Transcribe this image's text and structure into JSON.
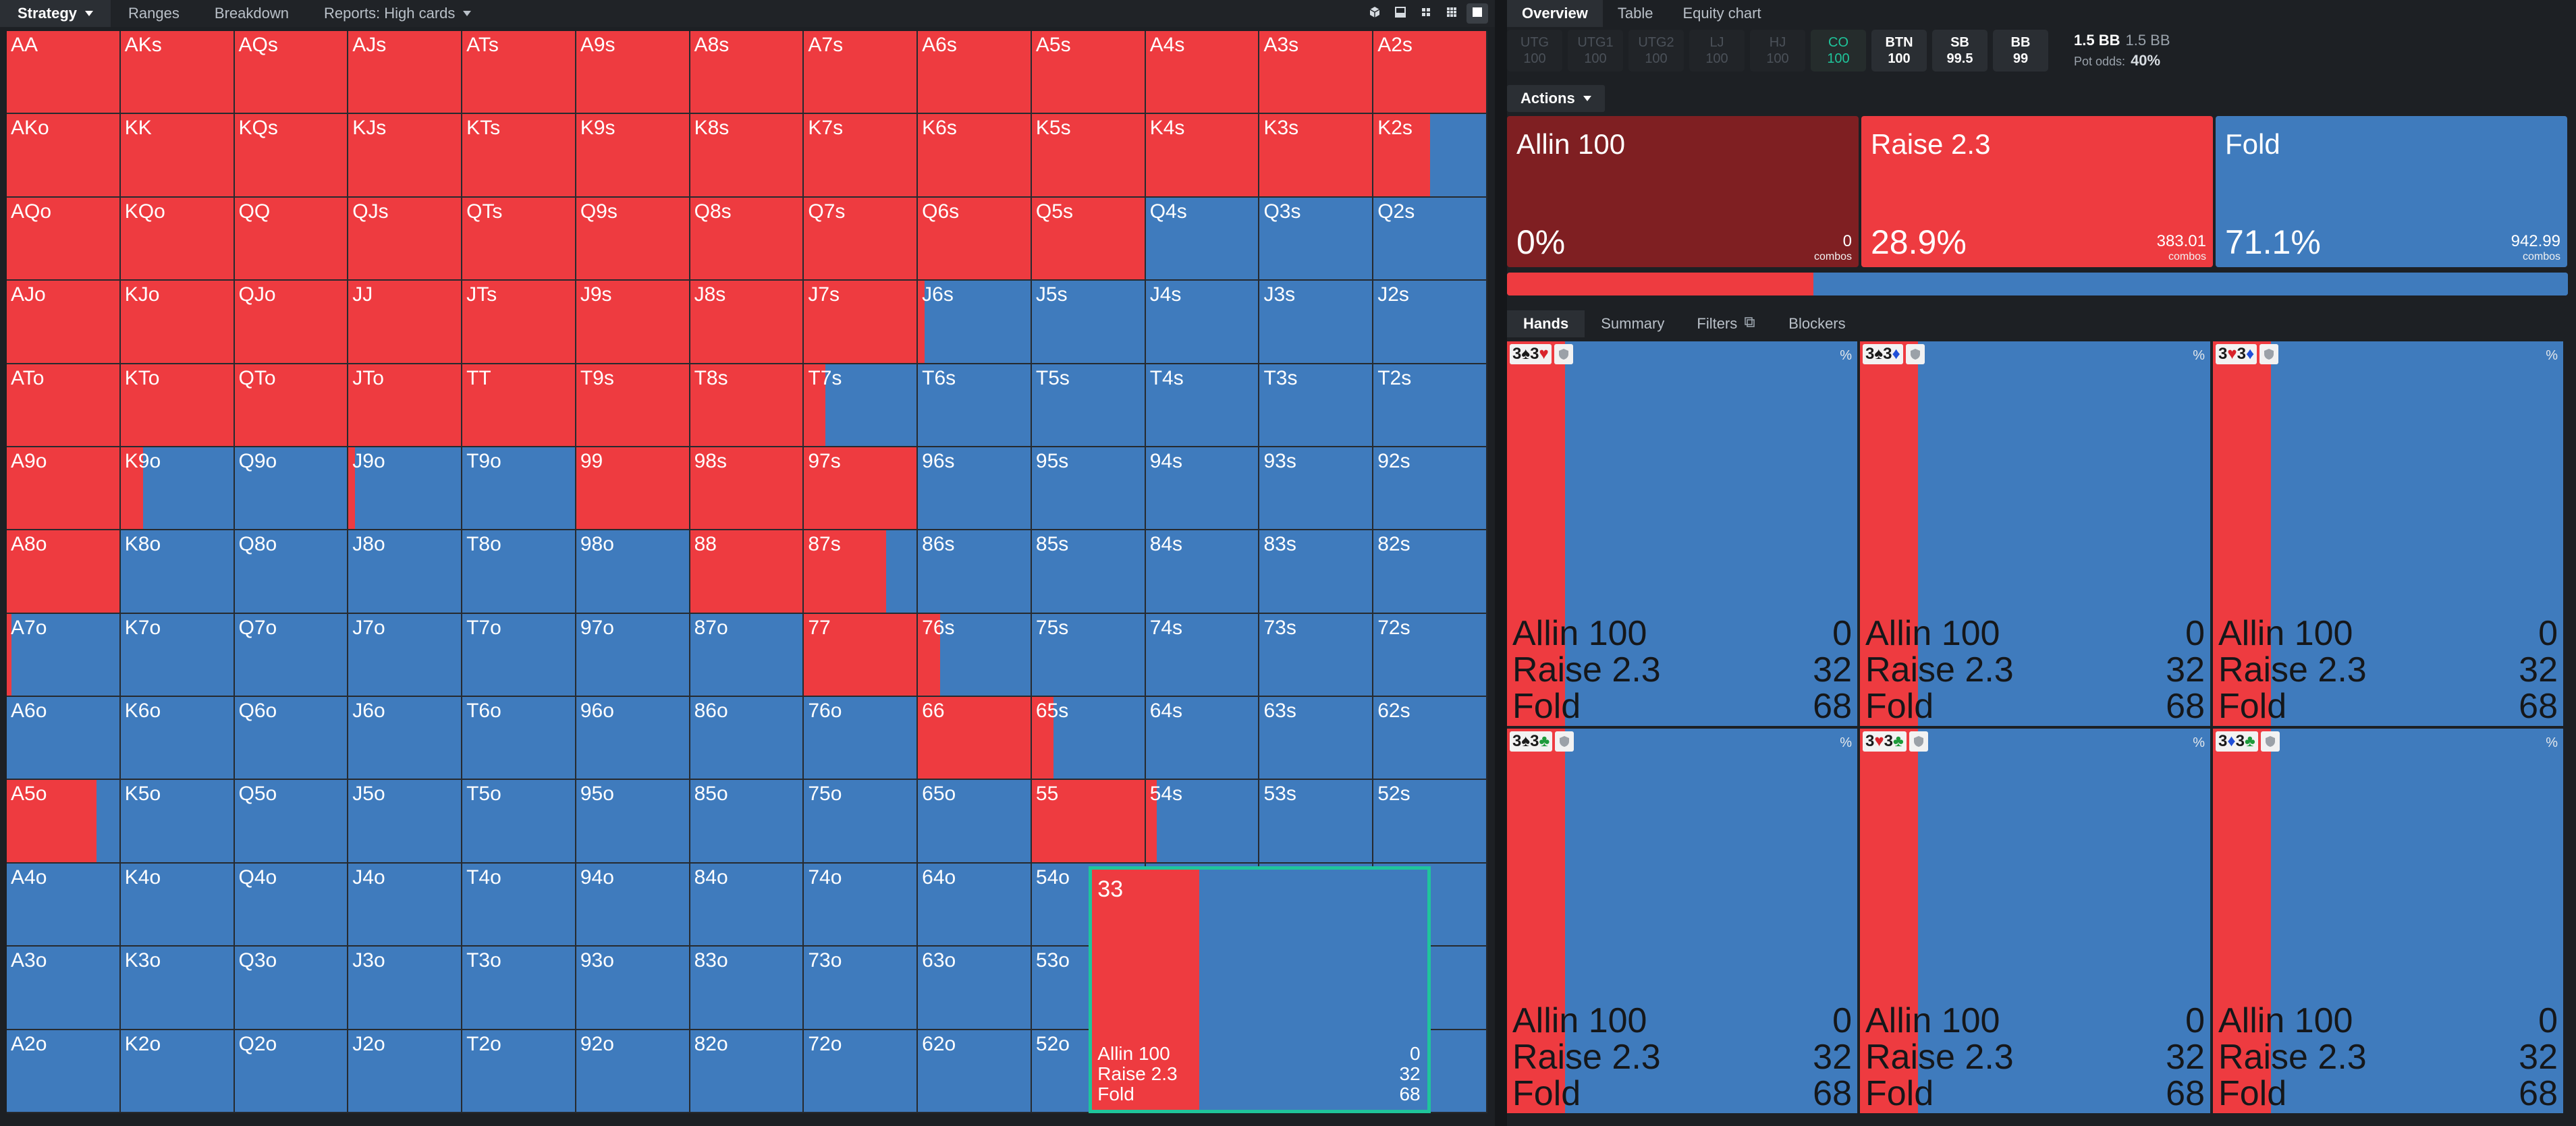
{
  "left_tabs": [
    {
      "label": "Strategy",
      "caret": true,
      "active": true
    },
    {
      "label": "Ranges",
      "caret": false,
      "active": false
    },
    {
      "label": "Breakdown",
      "caret": false,
      "active": false
    },
    {
      "label": "Reports: High cards",
      "caret": true,
      "active": false
    }
  ],
  "view_icons": [
    "cube-icon",
    "layout-split-icon",
    "grid-small-icon",
    "grid-large-icon",
    "square-icon"
  ],
  "colors": {
    "raise": "#ee3b40",
    "fold": "#3f7bbd",
    "allin": "#7f1f22",
    "selected_border": "#1fc59b"
  },
  "grid": {
    "ranks": [
      "A",
      "K",
      "Q",
      "J",
      "T",
      "9",
      "8",
      "7",
      "6",
      "5",
      "4",
      "3",
      "2"
    ],
    "raise_freq": [
      [
        1,
        1,
        1,
        1,
        1,
        1,
        1,
        1,
        1,
        1,
        1,
        1,
        1
      ],
      [
        1,
        1,
        1,
        1,
        1,
        1,
        1,
        1,
        1,
        1,
        1,
        1,
        0.5
      ],
      [
        1,
        1,
        1,
        1,
        1,
        1,
        1,
        1,
        1,
        1,
        0,
        0,
        0
      ],
      [
        1,
        1,
        1,
        1,
        1,
        1,
        1,
        1,
        0.06,
        0,
        0,
        0,
        0
      ],
      [
        1,
        1,
        1,
        1,
        1,
        1,
        1,
        0.19,
        0,
        0,
        0,
        0,
        0
      ],
      [
        1,
        0.2,
        0,
        0.06,
        0,
        1,
        1,
        1,
        0,
        0,
        0,
        0,
        0
      ],
      [
        1,
        0,
        0,
        0,
        0,
        0,
        1,
        0.73,
        0,
        0,
        0,
        0,
        0
      ],
      [
        0.04,
        0,
        0,
        0,
        0,
        0,
        0,
        1,
        0.2,
        0,
        0,
        0,
        0
      ],
      [
        0,
        0,
        0,
        0,
        0,
        0,
        0,
        0,
        1,
        0.19,
        0,
        0,
        0
      ],
      [
        0.8,
        0,
        0,
        0,
        0,
        0,
        0,
        0,
        0,
        1,
        0.1,
        0,
        0
      ],
      [
        0,
        0,
        0,
        0,
        0,
        0,
        0,
        0,
        0,
        0,
        0,
        0,
        0
      ],
      [
        0,
        0,
        0,
        0,
        0,
        0,
        0,
        0,
        0,
        0,
        0,
        0.32,
        0
      ],
      [
        0,
        0,
        0,
        0,
        0,
        0,
        0,
        0,
        0,
        0,
        0,
        0,
        0
      ]
    ],
    "selected_hand": "33",
    "selected_actions": [
      {
        "label": "Allin 100",
        "value": "0"
      },
      {
        "label": "Raise 2.3",
        "value": "32"
      },
      {
        "label": "Fold",
        "value": "68"
      }
    ]
  },
  "right_tabs": [
    {
      "label": "Overview",
      "active": true
    },
    {
      "label": "Table",
      "active": false
    },
    {
      "label": "Equity chart",
      "active": false
    }
  ],
  "positions": [
    {
      "name": "UTG",
      "stack": "100",
      "state": "dim"
    },
    {
      "name": "UTG1",
      "stack": "100",
      "state": "dim"
    },
    {
      "name": "UTG2",
      "stack": "100",
      "state": "dim"
    },
    {
      "name": "LJ",
      "stack": "100",
      "state": "dim"
    },
    {
      "name": "HJ",
      "stack": "100",
      "state": "dim"
    },
    {
      "name": "CO",
      "stack": "100",
      "state": "cur"
    },
    {
      "name": "BTN",
      "stack": "100",
      "state": "act"
    },
    {
      "name": "SB",
      "stack": "99.5",
      "state": "act"
    },
    {
      "name": "BB",
      "stack": "99",
      "state": "act"
    }
  ],
  "pot": {
    "size": "1.5 BB",
    "size_secondary": "1.5 BB",
    "odds_label": "Pot odds:",
    "odds_value": "40%"
  },
  "actions_label": "Actions",
  "action_cards": [
    {
      "name": "Allin 100",
      "pct": "0%",
      "combos": "0",
      "unit": "combos",
      "color": "#7f1f22",
      "freq": 0
    },
    {
      "name": "Raise 2.3",
      "pct": "28.9%",
      "combos": "383.01",
      "unit": "combos",
      "color": "#ee3b40",
      "freq": 0.289
    },
    {
      "name": "Fold",
      "pct": "71.1%",
      "combos": "942.99",
      "unit": "combos",
      "color": "#3f7bbd",
      "freq": 0.711
    }
  ],
  "sub_tabs": [
    {
      "label": "Hands",
      "active": true
    },
    {
      "label": "Summary",
      "active": false
    },
    {
      "label": "Filters",
      "active": false,
      "icon": "copy-icon"
    },
    {
      "label": "Blockers",
      "active": false
    }
  ],
  "combos": [
    {
      "cards": [
        {
          "rank": "3",
          "suit": "♠",
          "color": "#1a1a1a"
        },
        {
          "rank": "3",
          "suit": "♥",
          "color": "#d9242b"
        }
      ],
      "pct_label": "%",
      "raise_freq": 0.32,
      "rows": [
        {
          "label": "Allin 100",
          "value": "0"
        },
        {
          "label": "Raise 2.3",
          "value": "32"
        },
        {
          "label": "Fold",
          "value": "68"
        }
      ]
    },
    {
      "cards": [
        {
          "rank": "3",
          "suit": "♠",
          "color": "#1a1a1a"
        },
        {
          "rank": "3",
          "suit": "♦",
          "color": "#1f4fd8"
        }
      ],
      "pct_label": "%",
      "raise_freq": 0.32,
      "rows": [
        {
          "label": "Allin 100",
          "value": "0"
        },
        {
          "label": "Raise 2.3",
          "value": "32"
        },
        {
          "label": "Fold",
          "value": "68"
        }
      ]
    },
    {
      "cards": [
        {
          "rank": "3",
          "suit": "♥",
          "color": "#d9242b"
        },
        {
          "rank": "3",
          "suit": "♦",
          "color": "#1f4fd8"
        }
      ],
      "pct_label": "%",
      "raise_freq": 0.32,
      "rows": [
        {
          "label": "Allin 100",
          "value": "0"
        },
        {
          "label": "Raise 2.3",
          "value": "32"
        },
        {
          "label": "Fold",
          "value": "68"
        }
      ]
    },
    {
      "cards": [
        {
          "rank": "3",
          "suit": "♠",
          "color": "#1a1a1a"
        },
        {
          "rank": "3",
          "suit": "♣",
          "color": "#1d9a3a"
        }
      ],
      "pct_label": "%",
      "raise_freq": 0.32,
      "rows": [
        {
          "label": "Allin 100",
          "value": "0"
        },
        {
          "label": "Raise 2.3",
          "value": "32"
        },
        {
          "label": "Fold",
          "value": "68"
        }
      ]
    },
    {
      "cards": [
        {
          "rank": "3",
          "suit": "♥",
          "color": "#d9242b"
        },
        {
          "rank": "3",
          "suit": "♣",
          "color": "#1d9a3a"
        }
      ],
      "pct_label": "%",
      "raise_freq": 0.32,
      "rows": [
        {
          "label": "Allin 100",
          "value": "0"
        },
        {
          "label": "Raise 2.3",
          "value": "32"
        },
        {
          "label": "Fold",
          "value": "68"
        }
      ]
    },
    {
      "cards": [
        {
          "rank": "3",
          "suit": "♦",
          "color": "#1f4fd8"
        },
        {
          "rank": "3",
          "suit": "♣",
          "color": "#1d9a3a"
        }
      ],
      "pct_label": "%",
      "raise_freq": 0.32,
      "rows": [
        {
          "label": "Allin 100",
          "value": "0"
        },
        {
          "label": "Raise 2.3",
          "value": "32"
        },
        {
          "label": "Fold",
          "value": "68"
        }
      ]
    }
  ]
}
